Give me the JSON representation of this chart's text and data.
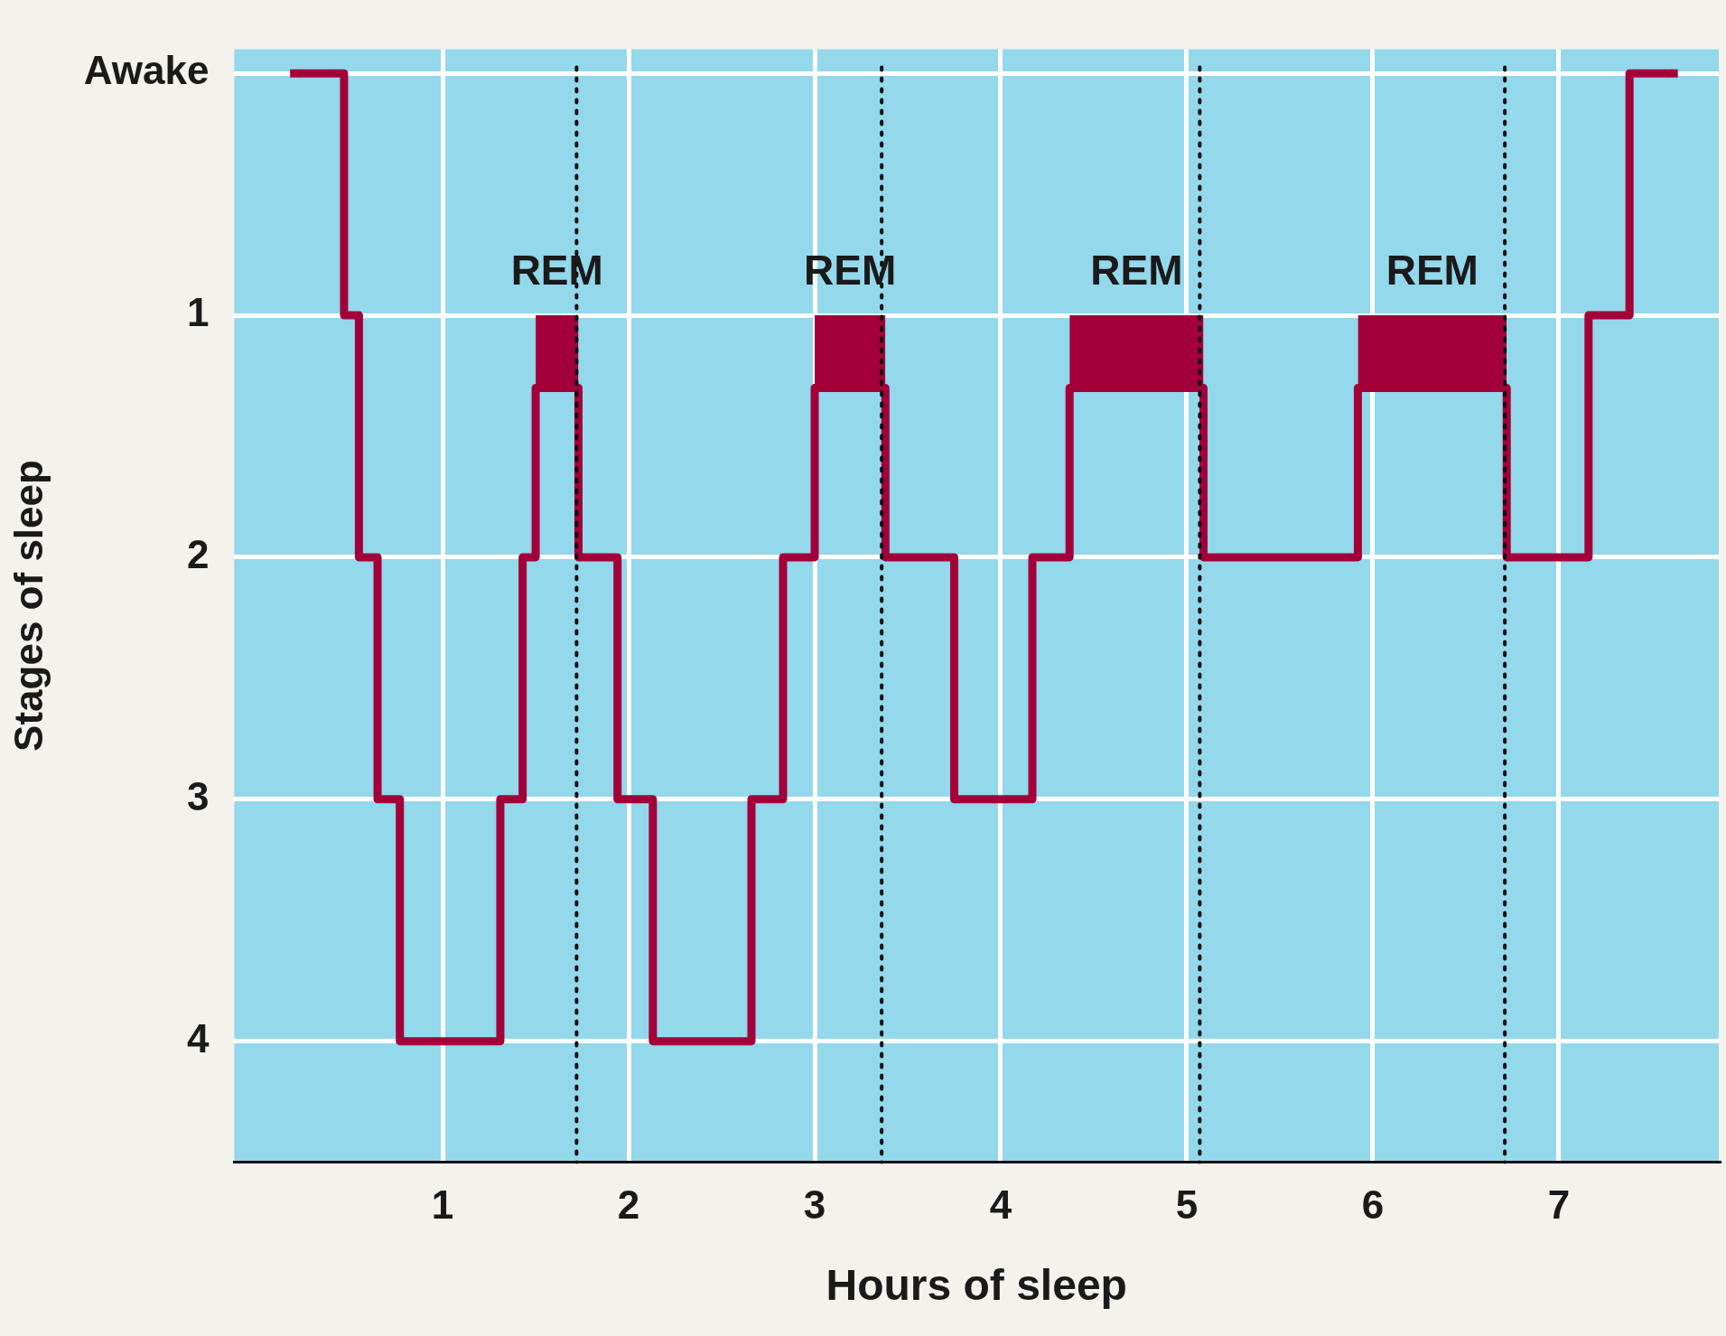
{
  "chart_data": {
    "type": "line",
    "xlabel": "Hours of sleep",
    "ylabel": "Stages of sleep",
    "xlim": [
      -0.12,
      7.86
    ],
    "xticks": [
      1,
      2,
      3,
      4,
      5,
      6,
      7
    ],
    "ylim": [
      4.5,
      -0.1
    ],
    "yticks": [
      {
        "value": 0,
        "label": "Awake"
      },
      1,
      2,
      3,
      4
    ],
    "grid": true,
    "marker": "none",
    "series": [
      {
        "color": "#a3003a",
        "x": [
          0.18,
          0.47,
          0.47,
          0.55,
          0.55,
          0.65,
          0.65,
          0.77,
          0.77,
          1.31,
          1.31,
          1.43,
          1.43,
          1.5,
          1.5,
          1.73,
          1.73,
          1.94,
          1.94,
          2.13,
          2.13,
          2.66,
          2.66,
          2.83,
          2.83,
          3.0,
          3.0,
          3.38,
          3.38,
          3.75,
          3.75,
          4.17,
          4.17,
          4.37,
          4.37,
          5.09,
          5.09,
          5.92,
          5.92,
          6.72,
          6.72,
          7.16,
          7.16,
          7.38,
          7.38,
          7.64
        ],
        "values": [
          0,
          0,
          1,
          1,
          2,
          2,
          3,
          3,
          4,
          4,
          3,
          3,
          2,
          2,
          1.3,
          1.3,
          2,
          2,
          3,
          3,
          4,
          4,
          3,
          3,
          2,
          2,
          1.3,
          1.3,
          2,
          2,
          3,
          3,
          2,
          2,
          1.3,
          1.3,
          2,
          2,
          1.3,
          1.3,
          2,
          2,
          1,
          1,
          0,
          0
        ],
        "lower": [
          null,
          null,
          null,
          null,
          null,
          null,
          null,
          null,
          null,
          null,
          null,
          null,
          null,
          null,
          1.3,
          1.3,
          null,
          null,
          null,
          null,
          null,
          null,
          null,
          null,
          null,
          null,
          1.3,
          1.3,
          null,
          null,
          null,
          null,
          null,
          null,
          1.3,
          1.3,
          null,
          null,
          1.3,
          1.3,
          null,
          null,
          null,
          null,
          null,
          null
        ],
        "upper": [
          null,
          null,
          null,
          null,
          null,
          null,
          null,
          null,
          null,
          null,
          null,
          null,
          null,
          null,
          1,
          1,
          null,
          null,
          null,
          null,
          null,
          null,
          null,
          null,
          null,
          null,
          1,
          1,
          null,
          null,
          null,
          null,
          null,
          null,
          1,
          1,
          null,
          null,
          1,
          1,
          null,
          null,
          null,
          null,
          null,
          null
        ]
      }
    ],
    "ref_lines": [
      {
        "axis": "x",
        "value": 1.72,
        "line_style": "dotted",
        "color": "#111111"
      },
      {
        "axis": "x",
        "value": 3.36,
        "line_style": "dotted",
        "color": "#111111"
      },
      {
        "axis": "x",
        "value": 5.07,
        "line_style": "dotted",
        "color": "#111111"
      },
      {
        "axis": "x",
        "value": 6.71,
        "line_style": "dotted",
        "color": "#111111"
      }
    ],
    "annotations": [
      "REM",
      "REM",
      "REM",
      "REM"
    ]
  }
}
